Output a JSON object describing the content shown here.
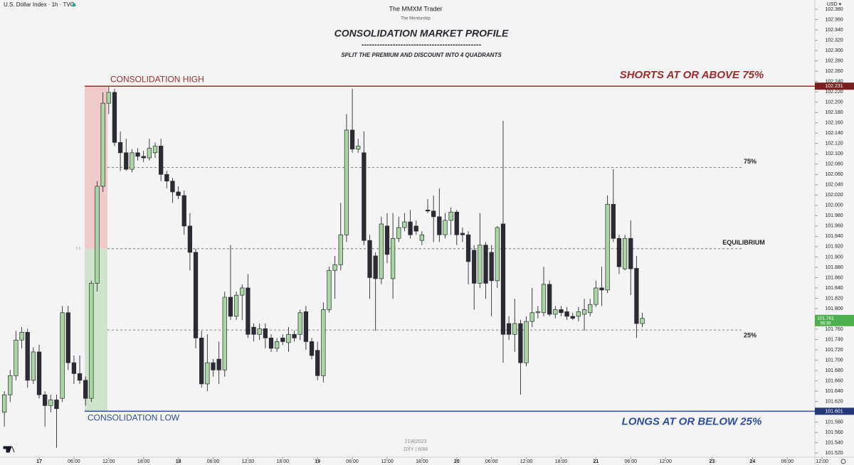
{
  "header": "U.S. Dollar Index · 1h · TVC",
  "chart_data": {
    "type": "candlestick",
    "author": "The MMXM Trader",
    "author_subtitle": "The Mentorship",
    "title": "CONSOLIDATION MARKET PROFILE",
    "title_rule": "----------------------------------------------",
    "subtitle": "SPLIT THE PREMIUM AND DISCOUNT INTO 4 QUADRANTS",
    "watermark": [
      "21|4|2023",
      "DXY | 60M"
    ],
    "currency": "USD ▾",
    "up_color": "#a9d6a3",
    "down_color": "#2b2b33",
    "xlim": [
      -6.75,
      140.5
    ],
    "ylim": [
      101.512,
      102.398
    ],
    "xticks": [
      {
        "value": 0,
        "label": "17"
      },
      {
        "value": 6,
        "label": "06:00"
      },
      {
        "value": 12,
        "label": "12:00"
      },
      {
        "value": 18,
        "label": "18:00"
      },
      {
        "value": 24,
        "label": "18"
      },
      {
        "value": 30,
        "label": "06:00"
      },
      {
        "value": 36,
        "label": "12:00"
      },
      {
        "value": 42,
        "label": "18:00"
      },
      {
        "value": 48,
        "label": "19"
      },
      {
        "value": 54,
        "label": "06:00"
      },
      {
        "value": 60,
        "label": "12:00"
      },
      {
        "value": 66,
        "label": "18:00"
      },
      {
        "value": 72,
        "label": "20"
      },
      {
        "value": 78,
        "label": "06:00"
      },
      {
        "value": 84,
        "label": "12:00"
      },
      {
        "value": 90,
        "label": "18:00"
      },
      {
        "value": 96,
        "label": "21"
      },
      {
        "value": 102,
        "label": "06:00"
      },
      {
        "value": 108,
        "label": "12:00"
      },
      {
        "value": 116,
        "label": "23"
      },
      {
        "value": 123,
        "label": "24"
      },
      {
        "value": 129,
        "label": "06:00"
      },
      {
        "value": 135,
        "label": "12:00"
      }
    ],
    "yticks": [
      {
        "value": 101.52,
        "label": "101.520"
      },
      {
        "value": 101.54,
        "label": "101.540"
      },
      {
        "value": 101.56,
        "label": "101.560"
      },
      {
        "value": 101.58,
        "label": "101.580"
      },
      {
        "value": 101.6,
        "label": "101.600"
      },
      {
        "value": 101.62,
        "label": "101.620"
      },
      {
        "value": 101.64,
        "label": "101.640"
      },
      {
        "value": 101.66,
        "label": "101.660"
      },
      {
        "value": 101.68,
        "label": "101.680"
      },
      {
        "value": 101.7,
        "label": "101.700"
      },
      {
        "value": 101.72,
        "label": "101.720"
      },
      {
        "value": 101.74,
        "label": "101.740"
      },
      {
        "value": 101.76,
        "label": "101.760"
      },
      {
        "value": 101.78,
        "label": "101.780"
      },
      {
        "value": 101.8,
        "label": "101.800"
      },
      {
        "value": 101.82,
        "label": "101.820"
      },
      {
        "value": 101.84,
        "label": "101.840"
      },
      {
        "value": 101.86,
        "label": "101.860"
      },
      {
        "value": 101.88,
        "label": "101.880"
      },
      {
        "value": 101.9,
        "label": "101.900"
      },
      {
        "value": 101.92,
        "label": "101.920"
      },
      {
        "value": 101.94,
        "label": "101.940"
      },
      {
        "value": 101.96,
        "label": "101.960"
      },
      {
        "value": 101.98,
        "label": "101.980"
      },
      {
        "value": 102,
        "label": "102.000"
      },
      {
        "value": 102.02,
        "label": "102.020"
      },
      {
        "value": 102.04,
        "label": "102.040"
      },
      {
        "value": 102.06,
        "label": "102.060"
      },
      {
        "value": 102.08,
        "label": "102.080"
      },
      {
        "value": 102.1,
        "label": "102.100"
      },
      {
        "value": 102.12,
        "label": "102.120"
      },
      {
        "value": 102.14,
        "label": "102.140"
      },
      {
        "value": 102.16,
        "label": "102.160"
      },
      {
        "value": 102.18,
        "label": "102.180"
      },
      {
        "value": 102.2,
        "label": "102.200"
      },
      {
        "value": 102.22,
        "label": "102.220"
      },
      {
        "value": 102.24,
        "label": "102.240"
      },
      {
        "value": 102.26,
        "label": "102.260"
      },
      {
        "value": 102.28,
        "label": "102.280"
      },
      {
        "value": 102.3,
        "label": "102.300"
      },
      {
        "value": 102.32,
        "label": "102.320"
      },
      {
        "value": 102.34,
        "label": "102.340"
      },
      {
        "value": 102.36,
        "label": "102.360"
      },
      {
        "value": 102.38,
        "label": "102.380"
      }
    ],
    "levels": [
      {
        "name": "CONSOLIDATION HIGH",
        "note": "SHORTS AT OR ABOVE 75%",
        "value": 102.231,
        "price_label": "102.231",
        "color": "#9b2c2c",
        "tag_color": "#7a1f1f"
      },
      {
        "name": "CONSOLIDATION LOW",
        "note": "LONGS AT OR BELOW 25%",
        "value": 101.601,
        "price_label": "101.601",
        "color": "#2f4d9c",
        "tag_color": "#23397a"
      }
    ],
    "quadrants": [
      {
        "name": "75%",
        "value": 102.0735
      },
      {
        "name": "EQUILIBRIUM",
        "value": 101.916,
        "zone_label": "0.5"
      },
      {
        "name": "25%",
        "value": 101.7585
      }
    ],
    "premium_color": "#f0c9c9",
    "discount_color": "#cfe5cb",
    "last_price": {
      "value": 101.781,
      "label": "101.781",
      "countdown": "56:39",
      "color": "#4caf50"
    },
    "candles": {
      "x": [
        -6,
        -5,
        -4,
        -3,
        -2,
        -1,
        0,
        1,
        2,
        3,
        4,
        5,
        6,
        7,
        8,
        9,
        10,
        11,
        12,
        13,
        14,
        15,
        16,
        17,
        18,
        19,
        20,
        21,
        22,
        23,
        24,
        25,
        26,
        27,
        28,
        29,
        30,
        31,
        32,
        33,
        34,
        35,
        36,
        37,
        38,
        39,
        40,
        41,
        42,
        43,
        44,
        45,
        46,
        47,
        48,
        49,
        50,
        51,
        52,
        53,
        54,
        55,
        56,
        57,
        58,
        59,
        60,
        61,
        62,
        63,
        64,
        65,
        66,
        67,
        68,
        69,
        70,
        71,
        72,
        73,
        74,
        75,
        76,
        77,
        78,
        79,
        80,
        81,
        82,
        83,
        84,
        85,
        86,
        87,
        88,
        89,
        90,
        91,
        92,
        93,
        94,
        95,
        96,
        97,
        98,
        99,
        100,
        101,
        102,
        103,
        104
      ],
      "open": [
        101.599,
        101.633,
        101.67,
        101.739,
        101.754,
        101.661,
        101.716,
        101.633,
        101.612,
        101.623,
        101.626,
        101.792,
        101.695,
        101.674,
        101.661,
        101.626,
        101.849,
        102.037,
        102.198,
        102.219,
        102.122,
        102.102,
        102.07,
        102.102,
        102.095,
        102.092,
        102.102,
        102.115,
        102.06,
        102.047,
        102.026,
        102.019,
        101.96,
        101.909,
        101.743,
        101.654,
        101.695,
        101.702,
        101.681,
        101.822,
        101.785,
        101.826,
        101.84,
        101.764,
        101.75,
        101.761,
        101.743,
        101.723,
        101.743,
        101.734,
        101.75,
        101.75,
        101.794,
        101.736,
        101.719,
        101.67,
        101.798,
        101.874,
        101.885,
        101.943,
        102.146,
        102.109,
        102.102,
        101.932,
        101.902,
        101.858,
        101.96,
        101.858,
        101.936,
        101.957,
        101.968,
        101.96,
        101.932,
        101.991,
        101.989,
        101.978,
        101.943,
        101.971,
        101.987,
        101.946,
        101.943,
        101.913,
        101.849,
        101.923,
        101.909,
        101.854,
        101.964,
        101.771,
        101.75,
        101.771,
        101.695,
        101.775,
        101.792,
        101.792,
        101.847,
        101.789,
        101.798,
        101.794,
        101.785,
        101.785,
        101.789,
        101.792,
        101.808,
        101.84,
        101.836,
        102.002,
        101.936,
        101.877,
        101.936,
        101.878,
        101.771
      ],
      "high": [
        101.64,
        101.681,
        101.757,
        101.764,
        101.761,
        101.725,
        101.73,
        101.64,
        101.633,
        101.633,
        101.805,
        101.805,
        101.709,
        101.709,
        101.668,
        101.854,
        102.047,
        102.219,
        102.23,
        102.226,
        102.143,
        102.129,
        102.109,
        102.111,
        102.106,
        102.129,
        102.122,
        102.129,
        102.067,
        102.053,
        102.037,
        102.029,
        101.985,
        101.916,
        101.757,
        101.75,
        101.702,
        101.736,
        101.833,
        101.923,
        101.833,
        101.847,
        101.867,
        101.771,
        101.771,
        101.771,
        101.75,
        101.743,
        101.75,
        101.764,
        101.757,
        101.798,
        101.805,
        101.743,
        101.736,
        101.812,
        101.881,
        101.902,
        102.005,
        102.177,
        102.226,
        102.129,
        102.143,
        101.943,
        101.909,
        101.978,
        101.985,
        101.985,
        101.978,
        101.985,
        101.991,
        101.971,
        101.95,
        102.012,
        102.019,
        102.033,
        101.985,
        101.996,
        101.991,
        101.957,
        101.95,
        101.923,
        101.985,
        101.929,
        101.923,
        101.96,
        102.164,
        101.785,
        101.819,
        101.778,
        101.785,
        101.84,
        101.805,
        101.881,
        101.854,
        101.805,
        101.805,
        101.803,
        101.792,
        101.803,
        101.819,
        101.819,
        101.854,
        101.881,
        102.019,
        102.07,
        101.943,
        101.943,
        101.971,
        101.902,
        101.792
      ],
      "low": [
        101.571,
        101.619,
        101.661,
        101.723,
        101.647,
        101.654,
        101.626,
        101.571,
        101.599,
        101.53,
        101.619,
        101.681,
        101.654,
        101.654,
        101.612,
        101.619,
        101.833,
        102.026,
        102.177,
        102.115,
        102.067,
        102.067,
        102.064,
        102.087,
        102.084,
        102.087,
        102.092,
        102.047,
        102.033,
        102.005,
        102.012,
        101.943,
        101.874,
        101.723,
        101.647,
        101.64,
        101.668,
        101.654,
        101.668,
        101.778,
        101.778,
        101.778,
        101.743,
        101.736,
        101.739,
        101.723,
        101.716,
        101.716,
        101.73,
        101.716,
        101.736,
        101.739,
        101.72,
        101.702,
        101.661,
        101.657,
        101.792,
        101.819,
        101.874,
        101.929,
        102.102,
        102.102,
        101.923,
        101.819,
        101.757,
        101.847,
        101.888,
        101.819,
        101.929,
        101.95,
        101.936,
        101.943,
        101.923,
        101.985,
        101.929,
        101.929,
        101.936,
        101.943,
        101.923,
        101.929,
        101.847,
        101.798,
        101.84,
        101.819,
        101.785,
        101.84,
        101.695,
        101.739,
        101.716,
        101.633,
        101.688,
        101.764,
        101.781,
        101.785,
        101.785,
        101.781,
        101.785,
        101.778,
        101.778,
        101.775,
        101.757,
        101.785,
        101.803,
        101.805,
        101.83,
        101.929,
        101.867,
        101.874,
        101.826,
        101.743,
        101.764
      ],
      "close": [
        101.633,
        101.67,
        101.739,
        101.754,
        101.661,
        101.716,
        101.633,
        101.612,
        101.623,
        101.606,
        101.792,
        101.695,
        101.674,
        101.661,
        101.626,
        101.849,
        102.037,
        102.198,
        102.219,
        102.122,
        102.102,
        102.07,
        102.102,
        102.095,
        102.092,
        102.111,
        102.115,
        102.06,
        102.047,
        102.026,
        102.019,
        101.96,
        101.909,
        101.743,
        101.654,
        101.695,
        101.681,
        101.681,
        101.822,
        101.785,
        101.826,
        101.84,
        101.75,
        101.75,
        101.761,
        101.743,
        101.723,
        101.736,
        101.736,
        101.75,
        101.743,
        101.792,
        101.736,
        101.709,
        101.67,
        101.798,
        101.874,
        101.885,
        101.943,
        102.146,
        102.109,
        102.115,
        101.932,
        101.86,
        101.858,
        101.964,
        101.905,
        101.936,
        101.957,
        101.968,
        101.943,
        101.95,
        101.943,
        101.989,
        101.978,
        101.943,
        101.971,
        101.987,
        101.943,
        101.943,
        101.891,
        101.849,
        101.923,
        101.849,
        101.854,
        101.957,
        101.75,
        101.75,
        101.771,
        101.695,
        101.775,
        101.792,
        101.794,
        101.847,
        101.789,
        101.798,
        101.792,
        101.785,
        101.781,
        101.794,
        101.798,
        101.808,
        101.84,
        101.836,
        102.002,
        101.936,
        101.881,
        101.936,
        101.877,
        101.771,
        101.781
      ]
    }
  }
}
